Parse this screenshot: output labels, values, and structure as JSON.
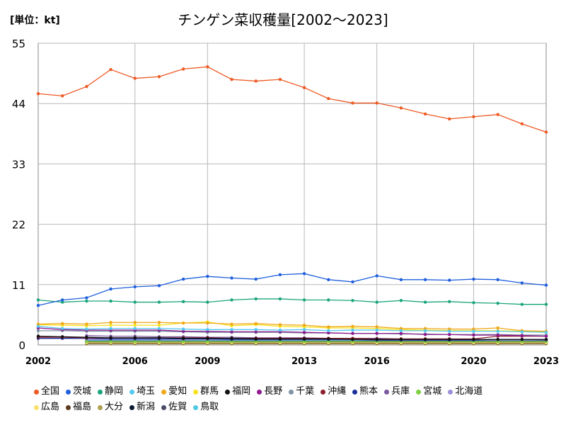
{
  "unit_label": "[単位：kt]",
  "chart_data": {
    "type": "line",
    "title": "チンゲン菜収穫量[2002～2023]",
    "unit": "[単位：kt]",
    "xlabel": "",
    "ylabel": "",
    "x": [
      2002,
      2003,
      2004,
      2005,
      2006,
      2007,
      2008,
      2009,
      2010,
      2011,
      2012,
      2013,
      2014,
      2015,
      2016,
      2017,
      2018,
      2019,
      2020,
      2021,
      2022,
      2023
    ],
    "x_ticks": [
      2002,
      2006,
      2009,
      2013,
      2016,
      2020,
      2023
    ],
    "y_ticks": [
      0,
      11,
      22,
      33,
      44,
      55
    ],
    "ylim": [
      0,
      55
    ],
    "grid": true,
    "legend_position": "bottom",
    "series": [
      {
        "name": "全国",
        "color": "#ee5a24",
        "values": [
          45.8,
          45.4,
          47.1,
          50.2,
          48.6,
          48.9,
          50.3,
          50.7,
          48.4,
          48.1,
          48.4,
          46.9,
          44.9,
          44.1,
          44.1,
          43.2,
          42.1,
          41.2,
          41.6,
          42.0,
          40.3,
          38.8
        ]
      },
      {
        "name": "茨城",
        "color": "#1f5fdc",
        "values": [
          7.2,
          8.2,
          8.6,
          10.2,
          10.6,
          10.8,
          12.0,
          12.5,
          12.2,
          12.0,
          12.8,
          13.0,
          11.9,
          11.5,
          12.6,
          11.9,
          11.9,
          11.8,
          12.0,
          11.9,
          11.3,
          10.9
        ]
      },
      {
        "name": "静岡",
        "color": "#1aa57c",
        "values": [
          8.2,
          7.8,
          8.0,
          8.0,
          7.8,
          7.8,
          7.9,
          7.8,
          8.2,
          8.4,
          8.4,
          8.2,
          8.2,
          8.1,
          7.8,
          8.1,
          7.8,
          7.9,
          7.7,
          7.6,
          7.4,
          7.4
        ]
      },
      {
        "name": "埼玉",
        "color": "#55c8f0",
        "values": [
          3.4,
          3.0,
          2.9,
          3.0,
          3.0,
          3.0,
          2.9,
          2.8,
          2.8,
          2.8,
          2.7,
          2.8,
          2.6,
          2.7,
          2.7,
          2.6,
          2.6,
          2.5,
          2.5,
          2.5,
          2.4,
          2.3
        ]
      },
      {
        "name": "愛知",
        "color": "#f0a818",
        "values": [
          3.8,
          3.9,
          3.8,
          4.1,
          4.1,
          4.1,
          4.0,
          4.0,
          3.8,
          3.9,
          3.7,
          3.6,
          3.3,
          3.4,
          3.3,
          3.0,
          3.0,
          2.9,
          2.9,
          3.1,
          2.6,
          2.5
        ]
      },
      {
        "name": "群馬",
        "color": "#f6e21c",
        "values": [
          3.7,
          3.6,
          3.5,
          3.6,
          3.6,
          3.6,
          4.0,
          4.2,
          3.5,
          3.7,
          3.4,
          3.3,
          3.1,
          3.1,
          3.0,
          2.8,
          2.7,
          2.6,
          2.6,
          2.6,
          2.5,
          2.4
        ]
      },
      {
        "name": "福岡",
        "color": "#111111",
        "values": [
          1.6,
          1.5,
          1.4,
          1.3,
          1.3,
          1.3,
          1.2,
          1.2,
          1.2,
          1.1,
          1.1,
          1.1,
          1.1,
          1.0,
          1.0,
          1.0,
          1.0,
          1.0,
          1.0,
          1.0,
          1.0,
          1.0
        ]
      },
      {
        "name": "長野",
        "color": "#8e1a8e",
        "values": [
          3.1,
          2.8,
          2.7,
          2.7,
          2.7,
          2.7,
          2.5,
          2.5,
          2.4,
          2.4,
          2.4,
          2.3,
          2.2,
          2.1,
          2.1,
          2.1,
          1.9,
          1.9,
          1.8,
          1.8,
          1.7,
          1.6
        ]
      },
      {
        "name": "千葉",
        "color": "#7f93a7",
        "values": [
          2.6,
          2.6,
          2.5,
          2.5,
          2.5,
          2.5,
          2.4,
          2.3,
          2.3,
          2.3,
          2.3,
          2.2,
          2.2,
          2.1,
          2.1,
          2.0,
          2.0,
          1.9,
          1.9,
          1.9,
          1.8,
          1.8
        ]
      },
      {
        "name": "沖縄",
        "color": "#8a1e2e",
        "values": [
          1.4,
          1.4,
          1.3,
          1.3,
          1.3,
          1.3,
          1.3,
          1.3,
          1.2,
          1.2,
          1.2,
          1.2,
          1.2,
          1.2,
          1.1,
          1.1,
          1.1,
          1.1,
          1.1,
          1.6,
          1.6,
          1.6
        ]
      },
      {
        "name": "熊本",
        "color": "#1a2f9a",
        "values": [
          1.2,
          1.2,
          1.2,
          1.1,
          1.1,
          1.1,
          1.1,
          1.1,
          1.0,
          1.0,
          1.0,
          1.0,
          1.0,
          1.0,
          0.9,
          0.9,
          0.9,
          0.9,
          0.9,
          1.0,
          1.0,
          1.0
        ]
      },
      {
        "name": "兵庫",
        "color": "#7a5a9e",
        "values": [
          null,
          null,
          1.7,
          1.6,
          1.6,
          1.5,
          1.5,
          1.4,
          1.4,
          1.3,
          1.3,
          1.3,
          1.2,
          1.2,
          1.2,
          1.1,
          1.1,
          1.1,
          1.0,
          1.0,
          1.0,
          0.9
        ]
      },
      {
        "name": "宮城",
        "color": "#7ed040",
        "values": [
          null,
          null,
          0.6,
          0.6,
          0.6,
          0.6,
          0.6,
          0.6,
          0.6,
          0.6,
          0.6,
          0.6,
          0.6,
          0.6,
          0.6,
          0.6,
          0.6,
          0.6,
          0.6,
          0.6,
          0.6,
          0.6
        ]
      },
      {
        "name": "北海道",
        "color": "#9a90d8",
        "values": [
          null,
          null,
          1.0,
          1.0,
          1.0,
          1.0,
          1.0,
          1.0,
          1.0,
          1.0,
          1.0,
          1.0,
          1.0,
          1.0,
          1.0,
          0.9,
          0.9,
          0.9,
          0.9,
          0.9,
          0.9,
          0.9
        ]
      },
      {
        "name": "広島",
        "color": "#f8e070",
        "values": [
          null,
          null,
          0.4,
          0.4,
          0.4,
          0.4,
          0.4,
          0.4,
          0.4,
          0.4,
          0.4,
          0.4,
          0.4,
          0.4,
          0.4,
          0.4,
          0.4,
          0.4,
          0.4,
          0.4,
          0.4,
          0.4
        ]
      },
      {
        "name": "福島",
        "color": "#5a3a1e",
        "values": [
          null,
          null,
          0.3,
          0.3,
          0.3,
          0.3,
          0.3,
          0.3,
          0.3,
          0.3,
          0.3,
          0.3,
          0.3,
          0.3,
          0.3,
          0.3,
          0.3,
          0.3,
          0.3,
          0.3,
          0.3,
          0.3
        ]
      },
      {
        "name": "大分",
        "color": "#b0a050",
        "values": [
          null,
          null,
          0.2,
          0.2,
          0.2,
          0.2,
          0.2,
          0.2,
          0.2,
          0.2,
          0.2,
          0.2,
          0.2,
          0.2,
          0.2,
          0.2,
          0.2,
          0.2,
          0.2,
          0.2,
          0.2,
          0.2
        ]
      },
      {
        "name": "新潟",
        "color": "#0c1830",
        "values": [
          null,
          null,
          0.5,
          0.5,
          0.5,
          0.5,
          0.5,
          0.5,
          0.5,
          0.5,
          0.5,
          0.5,
          0.5,
          0.5,
          0.5,
          0.5,
          0.5,
          0.5,
          0.5,
          0.5,
          0.5,
          0.5
        ]
      },
      {
        "name": "佐賀",
        "color": "#4a4a6a",
        "values": [
          null,
          null,
          0.7,
          0.7,
          0.7,
          0.7,
          0.7,
          0.7,
          0.7,
          0.7,
          0.7,
          0.7,
          0.7,
          0.7,
          0.7,
          0.7,
          0.7,
          0.7,
          0.7,
          0.7,
          0.7,
          0.7
        ]
      },
      {
        "name": "鳥取",
        "color": "#50c8e0",
        "values": [
          null,
          null,
          0.8,
          0.8,
          0.8,
          0.8,
          0.8,
          0.8,
          0.8,
          0.8,
          0.8,
          0.8,
          0.8,
          0.8,
          0.8,
          0.8,
          0.8,
          0.8,
          0.8,
          0.8,
          0.8,
          0.8
        ]
      }
    ]
  }
}
